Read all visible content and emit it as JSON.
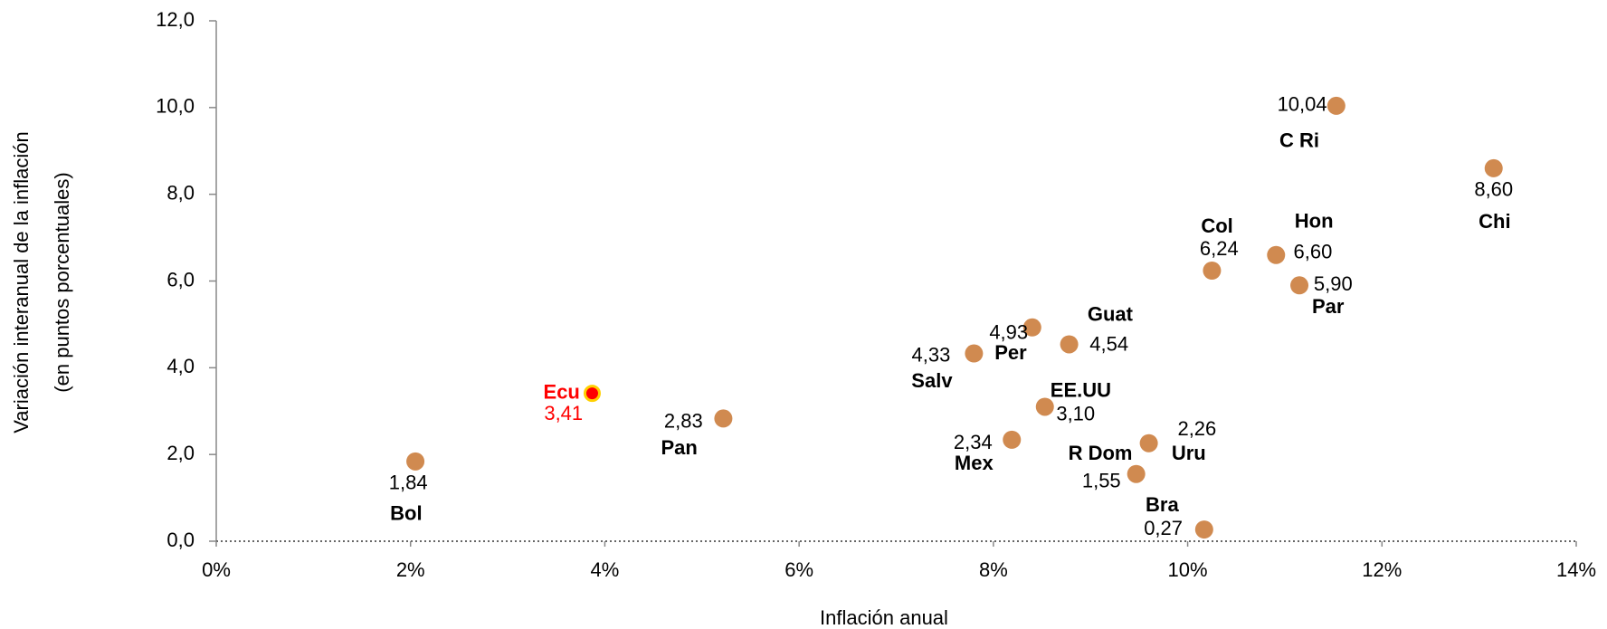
{
  "chart_data": {
    "type": "scatter",
    "x_label": "Inflación anual",
    "y_label": [
      "Variación  interanual de la inflación",
      "(en puntos porcentuales)"
    ],
    "labels": [
      "Bol",
      "Ecu",
      "Pan",
      "Salv",
      "Per",
      "Guat",
      "EE.UU",
      "Mex",
      "R Dom",
      "Uru",
      "Bra",
      "Col",
      "Hon",
      "Par",
      "C Ri",
      "Chi"
    ],
    "x": [
      2.05,
      3.87,
      5.22,
      7.8,
      8.4,
      8.78,
      8.53,
      8.19,
      9.47,
      9.6,
      10.17,
      10.25,
      10.91,
      11.15,
      11.53,
      13.15
    ],
    "values": [
      1.84,
      3.41,
      2.83,
      4.33,
      4.93,
      4.54,
      3.1,
      2.34,
      1.55,
      2.26,
      0.27,
      6.24,
      6.6,
      5.9,
      10.04,
      8.6
    ],
    "value_labels": [
      "1,84",
      "3,41",
      "2,83",
      "4,33",
      "4,93",
      "4,54",
      "3,10",
      "2,34",
      "1,55",
      "2,26",
      "0,27",
      "6,24",
      "6,60",
      "5,90",
      "10,04",
      "8,60"
    ],
    "point_colors": [
      "#d08a50",
      "#ff0000",
      "#d08a50",
      "#d08a50",
      "#d08a50",
      "#d08a50",
      "#d08a50",
      "#d08a50",
      "#d08a50",
      "#d08a50",
      "#d08a50",
      "#d08a50",
      "#d08a50",
      "#d08a50",
      "#d08a50",
      "#d08a50"
    ],
    "xlim": [
      0,
      14
    ],
    "xticks": [
      {
        "value": 0,
        "label": "0%"
      },
      {
        "value": 2,
        "label": "2%"
      },
      {
        "value": 4,
        "label": "4%"
      },
      {
        "value": 6,
        "label": "6%"
      },
      {
        "value": 8,
        "label": "8%"
      },
      {
        "value": 10,
        "label": "10%"
      },
      {
        "value": 12,
        "label": "12%"
      },
      {
        "value": 14,
        "label": "14%"
      }
    ],
    "ylim": [
      0,
      12
    ],
    "yticks": [
      {
        "value": 0,
        "label": "0,0"
      },
      {
        "value": 2,
        "label": "2,0"
      },
      {
        "value": 4,
        "label": "4,0"
      },
      {
        "value": 6,
        "label": "6,0"
      },
      {
        "value": 8,
        "label": "8,0"
      },
      {
        "value": 10,
        "label": "10,0"
      },
      {
        "value": 12,
        "label": "12,0"
      }
    ]
  }
}
